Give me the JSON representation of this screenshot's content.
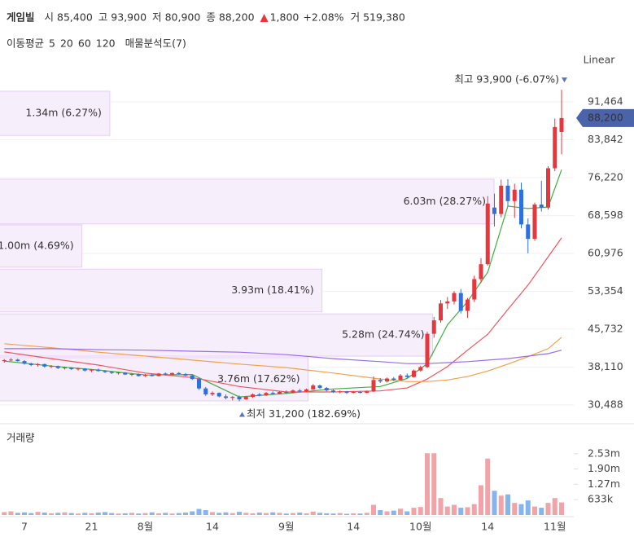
{
  "header": {
    "name": "게임빌",
    "items": [
      {
        "label": "시",
        "value": "85,400"
      },
      {
        "label": "고",
        "value": "93,900"
      },
      {
        "label": "저",
        "value": "80,900"
      },
      {
        "label": "종",
        "value": "88,200"
      }
    ],
    "change": "1,800",
    "change_pct": "+2.08%",
    "volume_label": "거",
    "volume": "519,380"
  },
  "legend_title": "이동평균",
  "scale_label": "Linear",
  "chart_data": {
    "type": "candlestick",
    "categories": [
      null,
      null,
      null,
      "7",
      null,
      null,
      null,
      null,
      null,
      null,
      null,
      null,
      null,
      "21",
      null,
      null,
      null,
      null,
      null,
      null,
      null,
      "8월",
      null,
      null,
      null,
      null,
      null,
      null,
      null,
      null,
      null,
      "14",
      null,
      null,
      null,
      null,
      null,
      null,
      null,
      null,
      null,
      null,
      "9월",
      null,
      null,
      null,
      null,
      null,
      null,
      null,
      null,
      null,
      "14",
      null,
      null,
      null,
      null,
      null,
      null,
      null,
      null,
      null,
      "10월",
      null,
      null,
      null,
      null,
      null,
      null,
      null,
      null,
      null,
      "14",
      null,
      null,
      null,
      null,
      null,
      null,
      null,
      null,
      null,
      "11월",
      null
    ],
    "open": [
      39300,
      39500,
      39600,
      39300,
      38800,
      38500,
      38700,
      38200,
      38300,
      37900,
      38000,
      37700,
      37800,
      37400,
      37600,
      37300,
      37100,
      36900,
      37000,
      36600,
      36700,
      36300,
      36500,
      36300,
      36800,
      36600,
      36900,
      36700,
      36400,
      35700,
      33800,
      32600,
      32900,
      32200,
      31900,
      32100,
      31600,
      32100,
      32600,
      32400,
      32900,
      32700,
      33100,
      32900,
      33400,
      33200,
      33600,
      34400,
      33900,
      33400,
      33100,
      33200,
      32900,
      33100,
      32900,
      33200,
      35500,
      35200,
      35800,
      35500,
      36400,
      36100,
      37400,
      38100,
      44800,
      47500,
      50900,
      51300,
      53000,
      49400,
      51700,
      55800,
      58800,
      70200,
      68900,
      74600,
      71500,
      73800,
      66800,
      63900,
      70800,
      70200,
      78100,
      85400
    ],
    "high": [
      39700,
      39900,
      39800,
      39500,
      39000,
      38900,
      38800,
      38500,
      38400,
      38200,
      38100,
      38000,
      37900,
      37700,
      37800,
      37500,
      37300,
      37200,
      37100,
      36900,
      36800,
      36700,
      36800,
      36900,
      37000,
      37000,
      37100,
      36900,
      36600,
      35900,
      34100,
      33200,
      33000,
      32600,
      32300,
      32400,
      32300,
      32800,
      32900,
      33100,
      33200,
      33300,
      33400,
      33600,
      33700,
      33800,
      34700,
      34600,
      34100,
      33600,
      33400,
      33300,
      33300,
      33300,
      33400,
      36200,
      35900,
      36000,
      36100,
      36700,
      36800,
      37600,
      38400,
      45200,
      48200,
      51600,
      52200,
      53400,
      53800,
      52000,
      56500,
      60000,
      72500,
      73000,
      75800,
      75900,
      75000,
      75200,
      68000,
      71200,
      75600,
      78500,
      88100,
      93900
    ],
    "low": [
      39000,
      39300,
      39200,
      38600,
      38300,
      38200,
      38000,
      37900,
      37700,
      37600,
      37500,
      37400,
      37200,
      37100,
      37200,
      36900,
      36700,
      36600,
      36500,
      36300,
      36200,
      36100,
      36200,
      36200,
      36400,
      36500,
      36600,
      36300,
      35500,
      33500,
      32300,
      32300,
      32000,
      31600,
      31400,
      31200,
      31500,
      31900,
      32200,
      32300,
      32500,
      32600,
      32700,
      32800,
      33000,
      33100,
      33500,
      33700,
      33200,
      32900,
      32800,
      32700,
      32800,
      32800,
      32800,
      33100,
      34900,
      35000,
      35300,
      35400,
      35900,
      36000,
      37200,
      37900,
      44000,
      47000,
      49800,
      50700,
      48900,
      48000,
      51200,
      55000,
      58500,
      66400,
      68200,
      70500,
      68100,
      66000,
      61000,
      63500,
      69400,
      69800,
      77500,
      80900
    ],
    "close": [
      39500,
      39600,
      39300,
      38800,
      38500,
      38700,
      38200,
      38300,
      37900,
      38000,
      37700,
      37800,
      37400,
      37600,
      37300,
      37100,
      36900,
      37000,
      36600,
      36700,
      36300,
      36500,
      36300,
      36800,
      36600,
      36900,
      36700,
      36400,
      35700,
      33800,
      32600,
      32900,
      32200,
      31900,
      32100,
      31600,
      32100,
      32600,
      32400,
      32900,
      32700,
      33100,
      32900,
      33400,
      33200,
      33600,
      34400,
      33900,
      33400,
      33100,
      33200,
      32900,
      33100,
      32900,
      33200,
      35500,
      35200,
      35800,
      35500,
      36400,
      36100,
      37400,
      38100,
      44800,
      47500,
      50900,
      51300,
      53000,
      49400,
      51700,
      55800,
      58800,
      71000,
      68900,
      74600,
      71500,
      73800,
      66800,
      63900,
      70800,
      70200,
      78100,
      86400,
      88200
    ],
    "up_color": "#e8363e",
    "down_color": "#2f6fe0",
    "ylim": [
      26700,
      97200
    ],
    "yticks": [
      {
        "value": 30488,
        "label": "30,488"
      },
      {
        "value": 38110,
        "label": "38,110"
      },
      {
        "value": 45732,
        "label": "45,732"
      },
      {
        "value": 53354,
        "label": "53,354"
      },
      {
        "value": 60976,
        "label": "60,976"
      },
      {
        "value": 68598,
        "label": "68,598"
      },
      {
        "value": 76220,
        "label": "76,220"
      },
      {
        "value": 83842,
        "label": "83,842"
      },
      {
        "value": 91464,
        "label": "91,464"
      }
    ],
    "grid": true,
    "last_price": {
      "value": 88200,
      "label": "88,200"
    },
    "annotations": [
      {
        "kind": "high",
        "value": 93900,
        "text": "최고 93,900 (-6.07%)"
      },
      {
        "kind": "low",
        "value": 31200,
        "text": "최저 31,200 (182.69%)"
      }
    ],
    "moving_averages": [
      {
        "name": "5",
        "color": "#3fae3f",
        "x": [
          0,
          7,
          14,
          21,
          28,
          35,
          42,
          49,
          56,
          60,
          63,
          66,
          69,
          72,
          75,
          78,
          81,
          83
        ],
        "values": [
          39300,
          38300,
          37500,
          36500,
          36600,
          32100,
          32800,
          33700,
          34200,
          35800,
          38800,
          46600,
          51300,
          57200,
          70500,
          70000,
          70300,
          77800
        ]
      },
      {
        "name": "20",
        "color": "#f0555e",
        "x": [
          0,
          7,
          14,
          21,
          28,
          35,
          42,
          49,
          56,
          60,
          63,
          66,
          69,
          72,
          75,
          78,
          81,
          83
        ],
        "values": [
          41150,
          39800,
          38500,
          36900,
          36000,
          34200,
          33100,
          33100,
          33300,
          33900,
          35700,
          38200,
          41500,
          44700,
          49700,
          54600,
          60300,
          64100
        ]
      },
      {
        "name": "60",
        "color": "#f3a04a",
        "x": [
          0,
          7,
          14,
          21,
          28,
          35,
          42,
          49,
          56,
          60,
          63,
          66,
          69,
          72,
          75,
          78,
          81,
          83
        ],
        "values": [
          42800,
          42000,
          41100,
          40300,
          39500,
          38700,
          38000,
          36900,
          35700,
          35200,
          35200,
          35500,
          36200,
          37300,
          38700,
          40200,
          41800,
          44100
        ]
      },
      {
        "name": "120",
        "color": "#9a6ee6",
        "x": [
          0,
          7,
          14,
          21,
          28,
          35,
          42,
          49,
          56,
          60,
          63,
          66,
          69,
          72,
          75,
          78,
          81,
          83
        ],
        "values": [
          41800,
          41800,
          41600,
          41500,
          41300,
          41100,
          40600,
          39800,
          39200,
          38800,
          38800,
          39000,
          39200,
          39500,
          39800,
          40300,
          40800,
          41500
        ]
      }
    ],
    "volume_profile": {
      "name": "매물분석도(7)",
      "color": "#f7eefc",
      "bands": [
        {
          "low": 84700,
          "high": 93600,
          "volume": 1340000,
          "label": "1.34m (6.27%)"
        },
        {
          "low": 66900,
          "high": 75900,
          "volume": 6030000,
          "label": "6.03m (28.27%)"
        },
        {
          "low": 58200,
          "high": 66700,
          "volume": 1000000,
          "label": "1.00m (4.69%)"
        },
        {
          "low": 49200,
          "high": 57800,
          "volume": 3930000,
          "label": "3.93m (18.41%)"
        },
        {
          "low": 40300,
          "high": 48800,
          "volume": 5280000,
          "label": "5.28m (24.74%)"
        },
        {
          "low": 31300,
          "high": 40000,
          "volume": 3760000,
          "label": "3.76m (17.62%)"
        }
      ]
    },
    "volume": {
      "title": "거래량",
      "up_color": "#f2a3a8",
      "down_color": "#86b4ee",
      "values": [
        120000,
        150000,
        90000,
        110000,
        80000,
        130000,
        100000,
        70000,
        90000,
        110000,
        80000,
        60000,
        90000,
        70000,
        100000,
        120000,
        80000,
        60000,
        70000,
        90000,
        60000,
        80000,
        110000,
        70000,
        90000,
        60000,
        80000,
        100000,
        150000,
        250000,
        200000,
        120000,
        90000,
        110000,
        80000,
        130000,
        90000,
        70000,
        100000,
        80000,
        110000,
        90000,
        60000,
        80000,
        100000,
        70000,
        140000,
        90000,
        70000,
        60000,
        80000,
        50000,
        70000,
        60000,
        90000,
        420000,
        200000,
        150000,
        180000,
        260000,
        150000,
        300000,
        330000,
        2550000,
        2550000,
        700000,
        350000,
        420000,
        300000,
        320000,
        450000,
        1230000,
        2330000,
        1000000,
        800000,
        850000,
        500000,
        450000,
        600000,
        350000,
        300000,
        500000,
        700000,
        519380
      ],
      "ylim": [
        0,
        3500000
      ],
      "yticks": [
        {
          "value": 633000,
          "label": "633k"
        },
        {
          "value": 1270000,
          "label": "1.27m"
        },
        {
          "value": 1900000,
          "label": "1.90m"
        },
        {
          "value": 2530000,
          "label": "2.53m"
        }
      ]
    }
  }
}
